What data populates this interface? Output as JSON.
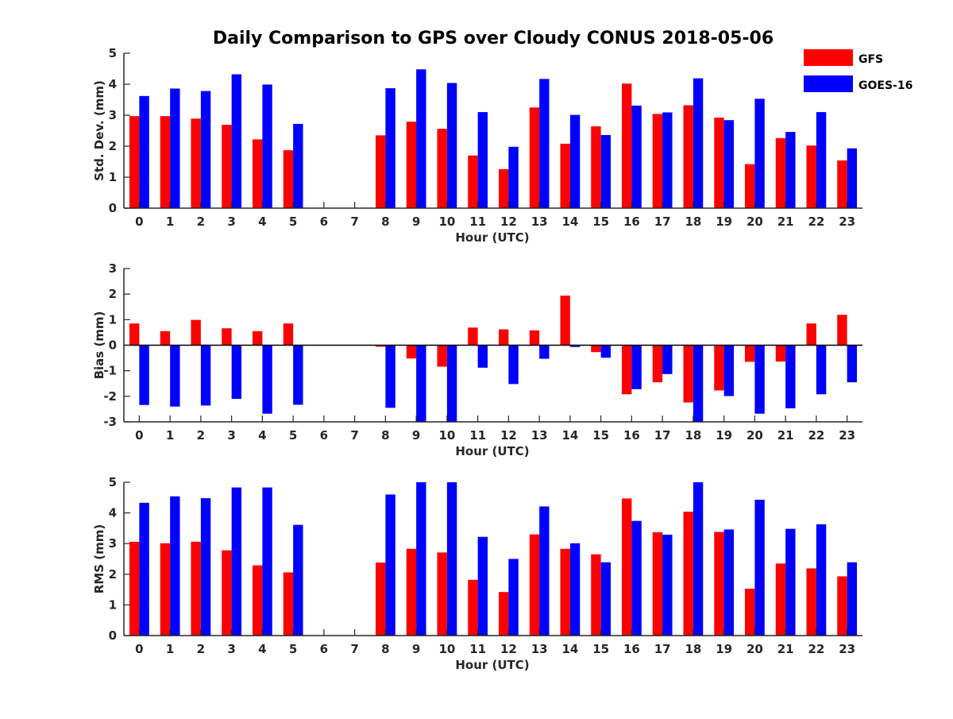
{
  "title": "Daily Comparison to GPS over Cloudy CONUS 2018-05-06",
  "colors": {
    "GFS": "#ff0000",
    "GOES-16": "#0000ff",
    "axis": "#262626"
  },
  "legend": {
    "placement": "top-right",
    "items": [
      "GFS",
      "GOES-16"
    ]
  },
  "chart_data": [
    {
      "type": "bar",
      "xlabel": "Hour (UTC)",
      "ylabel": "Std. Dev. (mm)",
      "ylim": [
        0,
        5
      ],
      "yticks": [
        0,
        1,
        2,
        3,
        4,
        5
      ],
      "grid": false,
      "categories": [
        "0",
        "1",
        "2",
        "3",
        "4",
        "5",
        "6",
        "7",
        "8",
        "9",
        "10",
        "11",
        "12",
        "13",
        "14",
        "15",
        "16",
        "17",
        "18",
        "19",
        "20",
        "21",
        "22",
        "23"
      ],
      "series": [
        {
          "name": "GFS",
          "values": [
            2.97,
            2.97,
            2.89,
            2.69,
            2.22,
            1.87,
            null,
            null,
            2.35,
            2.79,
            2.56,
            1.7,
            1.26,
            3.25,
            2.08,
            2.64,
            4.02,
            3.04,
            3.32,
            2.92,
            1.42,
            2.26,
            2.02,
            1.54
          ]
        },
        {
          "name": "GOES-16",
          "values": [
            3.62,
            3.86,
            3.78,
            4.32,
            3.99,
            2.72,
            null,
            null,
            3.87,
            4.48,
            4.04,
            3.1,
            1.98,
            4.17,
            3.01,
            2.36,
            3.31,
            3.09,
            4.19,
            2.84,
            3.53,
            2.46,
            3.1,
            1.93
          ]
        }
      ]
    },
    {
      "type": "bar",
      "xlabel": "Hour (UTC)",
      "ylabel": "Bias (mm)",
      "ylim": [
        -3,
        3
      ],
      "yticks": [
        -3,
        -2,
        -1,
        0,
        1,
        2,
        3
      ],
      "grid": false,
      "zero_line": true,
      "categories": [
        "0",
        "1",
        "2",
        "3",
        "4",
        "5",
        "6",
        "7",
        "8",
        "9",
        "10",
        "11",
        "12",
        "13",
        "14",
        "15",
        "16",
        "17",
        "18",
        "19",
        "20",
        "21",
        "22",
        "23"
      ],
      "series": [
        {
          "name": "GFS",
          "values": [
            0.85,
            0.55,
            0.99,
            0.66,
            0.55,
            0.85,
            null,
            null,
            -0.06,
            -0.52,
            -0.84,
            0.69,
            0.62,
            0.58,
            1.94,
            -0.27,
            -1.92,
            -1.45,
            -2.24,
            -1.77,
            -0.65,
            -0.64,
            0.85,
            1.19
          ]
        },
        {
          "name": "GOES-16",
          "values": [
            -2.34,
            -2.4,
            -2.36,
            -2.1,
            -2.68,
            -2.33,
            null,
            null,
            -2.45,
            -3.0,
            -3.0,
            -0.88,
            -1.52,
            -0.53,
            -0.07,
            -0.49,
            -1.72,
            -1.13,
            -3.0,
            -1.99,
            -2.68,
            -2.47,
            -1.92,
            -1.45
          ]
        }
      ]
    },
    {
      "type": "bar",
      "xlabel": "Hour (UTC)",
      "ylabel": "RMS (mm)",
      "ylim": [
        0,
        5
      ],
      "yticks": [
        0,
        1,
        2,
        3,
        4,
        5
      ],
      "grid": false,
      "categories": [
        "0",
        "1",
        "2",
        "3",
        "4",
        "5",
        "6",
        "7",
        "8",
        "9",
        "10",
        "11",
        "12",
        "13",
        "14",
        "15",
        "16",
        "17",
        "18",
        "19",
        "20",
        "21",
        "22",
        "23"
      ],
      "series": [
        {
          "name": "GFS",
          "values": [
            3.06,
            3.01,
            3.06,
            2.78,
            2.29,
            2.06,
            null,
            null,
            2.38,
            2.83,
            2.71,
            1.82,
            1.42,
            3.3,
            2.83,
            2.65,
            4.47,
            3.37,
            4.04,
            3.38,
            1.53,
            2.35,
            2.19,
            1.93
          ]
        },
        {
          "name": "GOES-16",
          "values": [
            4.33,
            4.54,
            4.48,
            4.83,
            4.83,
            3.61,
            null,
            null,
            4.6,
            5.0,
            5.0,
            3.22,
            2.5,
            4.21,
            3.01,
            2.39,
            3.74,
            3.29,
            5.0,
            3.46,
            4.43,
            3.48,
            3.63,
            2.39
          ]
        }
      ]
    }
  ]
}
